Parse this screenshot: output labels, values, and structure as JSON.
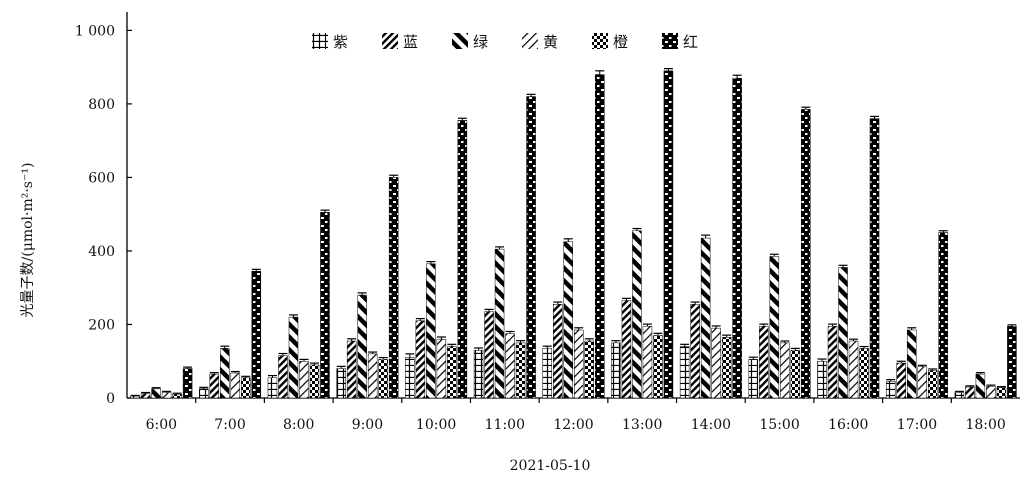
{
  "chart_data": {
    "type": "bar",
    "title": "",
    "xlabel": "2021-05-10",
    "ylabel": "光量子数/(μmol·m²·s⁻¹)",
    "ylim": [
      0,
      1050
    ],
    "yticks": [
      0,
      200,
      400,
      600,
      800,
      1000
    ],
    "ytick_labels": [
      "0",
      "200",
      "400",
      "600",
      "800",
      "1 000"
    ],
    "grid": false,
    "legend_position": "top-center",
    "categories": [
      "6:00",
      "7:00",
      "8:00",
      "9:00",
      "10:00",
      "11:00",
      "12:00",
      "13:00",
      "14:00",
      "15:00",
      "16:00",
      "17:00",
      "18:00"
    ],
    "series": [
      {
        "name": "紫",
        "pattern": "grid",
        "values": [
          5,
          25,
          55,
          80,
          110,
          130,
          135,
          150,
          140,
          105,
          100,
          45,
          15
        ],
        "errors": [
          2,
          4,
          6,
          6,
          10,
          6,
          6,
          6,
          6,
          6,
          6,
          5,
          3
        ]
      },
      {
        "name": "蓝",
        "pattern": "diagonal-dense",
        "values": [
          12,
          65,
          115,
          155,
          210,
          235,
          255,
          265,
          255,
          195,
          195,
          95,
          30
        ],
        "errors": [
          3,
          4,
          6,
          6,
          6,
          6,
          6,
          6,
          6,
          6,
          6,
          5,
          3
        ]
      },
      {
        "name": "绿",
        "pattern": "diagonal-wide",
        "values": [
          25,
          135,
          220,
          280,
          365,
          405,
          425,
          455,
          435,
          385,
          355,
          185,
          65
        ],
        "errors": [
          3,
          6,
          6,
          6,
          6,
          6,
          8,
          6,
          8,
          6,
          6,
          6,
          4
        ]
      },
      {
        "name": "黄",
        "pattern": "diagonal-light",
        "values": [
          15,
          68,
          100,
          120,
          160,
          175,
          185,
          195,
          190,
          150,
          155,
          85,
          32
        ],
        "errors": [
          3,
          4,
          5,
          5,
          6,
          6,
          6,
          6,
          6,
          5,
          5,
          4,
          3
        ]
      },
      {
        "name": "橙",
        "pattern": "checker",
        "values": [
          10,
          55,
          90,
          105,
          140,
          150,
          155,
          170,
          165,
          130,
          135,
          75,
          28
        ],
        "errors": [
          3,
          4,
          5,
          5,
          6,
          6,
          6,
          6,
          6,
          5,
          5,
          4,
          3
        ]
      },
      {
        "name": "红",
        "pattern": "brick",
        "values": [
          80,
          345,
          505,
          600,
          755,
          820,
          880,
          890,
          870,
          785,
          760,
          450,
          195
        ],
        "errors": [
          4,
          5,
          6,
          6,
          6,
          6,
          10,
          6,
          8,
          6,
          6,
          5,
          4
        ]
      }
    ]
  }
}
